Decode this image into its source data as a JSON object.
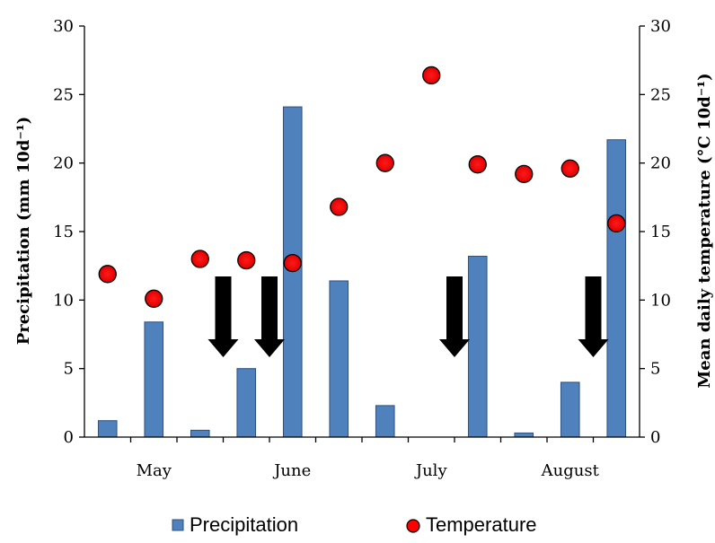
{
  "chart_data": {
    "type": "bar",
    "x_tick_labels": [
      "May",
      "June",
      "July",
      "August"
    ],
    "categories": [
      "1",
      "2",
      "3",
      "4",
      "5",
      "6",
      "7",
      "8",
      "9",
      "10",
      "11",
      "12"
    ],
    "series": [
      {
        "name": "Precipitation",
        "type": "bar",
        "axis": "left",
        "color": "#4f81bd",
        "values": [
          1.2,
          8.4,
          0.5,
          5.0,
          24.1,
          11.4,
          2.3,
          0,
          13.2,
          0.3,
          4.0,
          21.7
        ]
      },
      {
        "name": "Temperature",
        "type": "scatter",
        "axis": "right",
        "color": "#ff0000",
        "values": [
          11.9,
          10.1,
          13.0,
          12.9,
          12.7,
          16.8,
          20.0,
          26.4,
          19.9,
          19.2,
          19.6,
          15.6
        ]
      }
    ],
    "arrows_at_categories": [
      3,
      4,
      8,
      11
    ],
    "ylabel": "Precipitation  (mm 10d⁻¹)",
    "y2label": "Mean daily temperature (°C 10d⁻¹)",
    "ylim": [
      0,
      30
    ],
    "y2lim": [
      0,
      30
    ],
    "yticks": [
      0,
      5,
      10,
      15,
      20,
      25,
      30
    ],
    "grid": false,
    "legend_position": "bottom"
  }
}
